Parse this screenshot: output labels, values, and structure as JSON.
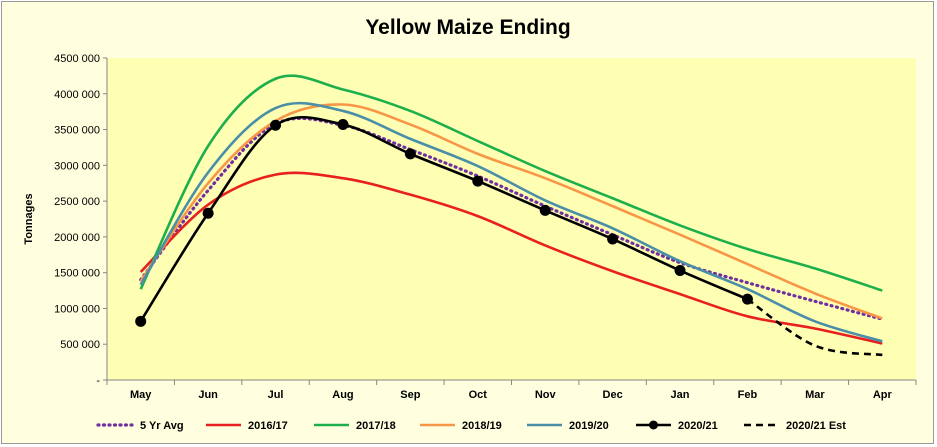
{
  "chart_data": {
    "type": "line",
    "title": "Yellow Maize Ending",
    "xlabel": "",
    "ylabel": "Tonnages",
    "categories": [
      "May",
      "Jun",
      "Jul",
      "Aug",
      "Sep",
      "Oct",
      "Nov",
      "Dec",
      "Jan",
      "Feb",
      "Mar",
      "Apr"
    ],
    "yticks": [
      "-",
      "500 000",
      "1000 000",
      "1500 000",
      "2000 000",
      "2500 000",
      "3000 000",
      "3500 000",
      "4000 000",
      "4500 000"
    ],
    "ylim": [
      0,
      4500000
    ],
    "grid": false,
    "legend_position": "bottom",
    "series": [
      {
        "name": "5 Yr Avg",
        "color": "#7030a0",
        "style": "dotted",
        "marker": false,
        "values": [
          1400000,
          2650000,
          3580000,
          3560000,
          3220000,
          2850000,
          2430000,
          2030000,
          1640000,
          1360000,
          1100000,
          850000
        ]
      },
      {
        "name": "2016/17",
        "color": "#e82020",
        "style": "solid",
        "marker": false,
        "values": [
          1510000,
          2450000,
          2870000,
          2820000,
          2590000,
          2290000,
          1880000,
          1520000,
          1200000,
          890000,
          720000,
          510000
        ]
      },
      {
        "name": "2017/18",
        "color": "#1daf4b",
        "style": "solid",
        "marker": false,
        "values": [
          1270000,
          3270000,
          4210000,
          4060000,
          3760000,
          3340000,
          2920000,
          2540000,
          2160000,
          1830000,
          1560000,
          1250000
        ]
      },
      {
        "name": "2018/19",
        "color": "#f79646",
        "style": "solid",
        "marker": false,
        "values": [
          1380000,
          2750000,
          3620000,
          3850000,
          3570000,
          3160000,
          2820000,
          2430000,
          2030000,
          1620000,
          1210000,
          860000
        ]
      },
      {
        "name": "2019/20",
        "color": "#4a8ea8",
        "style": "solid",
        "marker": false,
        "values": [
          1330000,
          2900000,
          3800000,
          3760000,
          3370000,
          2990000,
          2510000,
          2120000,
          1660000,
          1270000,
          820000,
          540000
        ]
      },
      {
        "name": "2020/21",
        "color": "#000000",
        "style": "solid",
        "marker": true,
        "values": [
          820000,
          2330000,
          3560000,
          3570000,
          3160000,
          2780000,
          2370000,
          1970000,
          1530000,
          1130000,
          null,
          null
        ]
      },
      {
        "name": "2020/21 Est",
        "color": "#000000",
        "style": "dashed",
        "marker": false,
        "values": [
          null,
          null,
          null,
          null,
          null,
          null,
          null,
          null,
          null,
          1130000,
          480000,
          350000
        ]
      }
    ]
  }
}
